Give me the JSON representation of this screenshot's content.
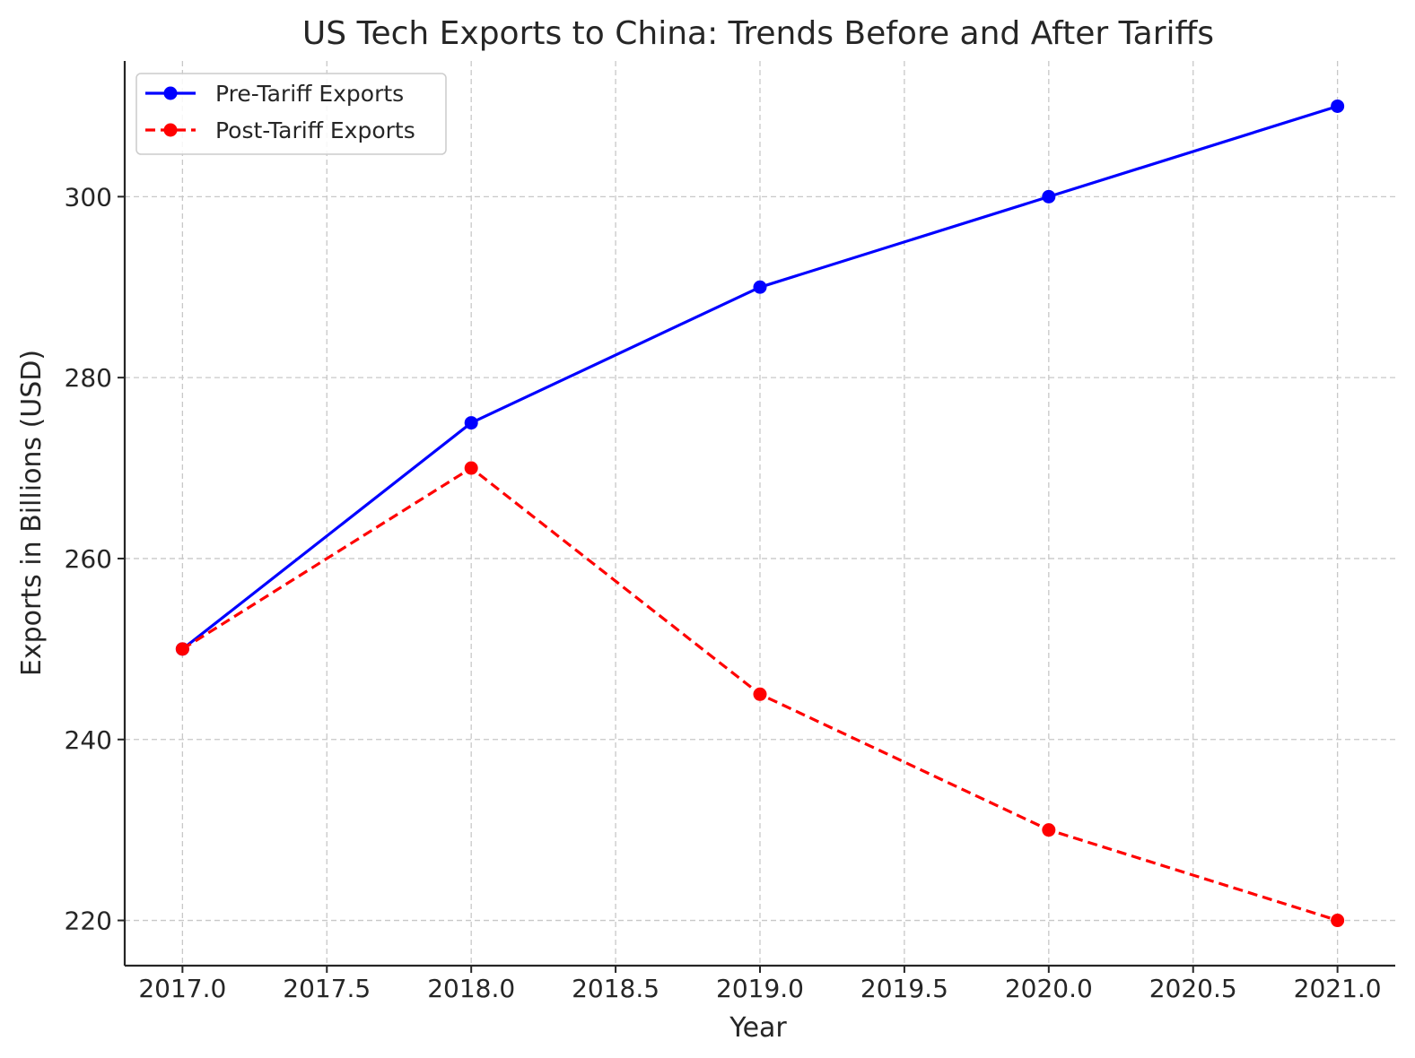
{
  "chart_data": {
    "type": "line",
    "title": "US Tech Exports to China: Trends Before and After Tariffs",
    "xlabel": "Year",
    "ylabel": "Exports in Billions (USD)",
    "x": [
      2017,
      2018,
      2019,
      2020,
      2021
    ],
    "xlim": [
      2016.8,
      2021.2
    ],
    "ylim": [
      215,
      315
    ],
    "xticks": [
      "2017.0",
      "2017.5",
      "2018.0",
      "2018.5",
      "2019.0",
      "2019.5",
      "2020.0",
      "2020.5",
      "2021.0"
    ],
    "xtick_values": [
      2017.0,
      2017.5,
      2018.0,
      2018.5,
      2019.0,
      2019.5,
      2020.0,
      2020.5,
      2021.0
    ],
    "yticks": [
      "220",
      "240",
      "260",
      "280",
      "300"
    ],
    "ytick_values": [
      220,
      240,
      260,
      280,
      300
    ],
    "grid": true,
    "legend_position": "upper-left",
    "series": [
      {
        "name": "Pre-Tariff Exports",
        "values": [
          250,
          275,
          290,
          300,
          310
        ],
        "color": "#0000ff",
        "line_style": "solid",
        "marker": "circle"
      },
      {
        "name": "Post-Tariff Exports",
        "values": [
          250,
          270,
          245,
          230,
          220
        ],
        "color": "#ff0000",
        "line_style": "dashed",
        "marker": "circle"
      }
    ]
  }
}
